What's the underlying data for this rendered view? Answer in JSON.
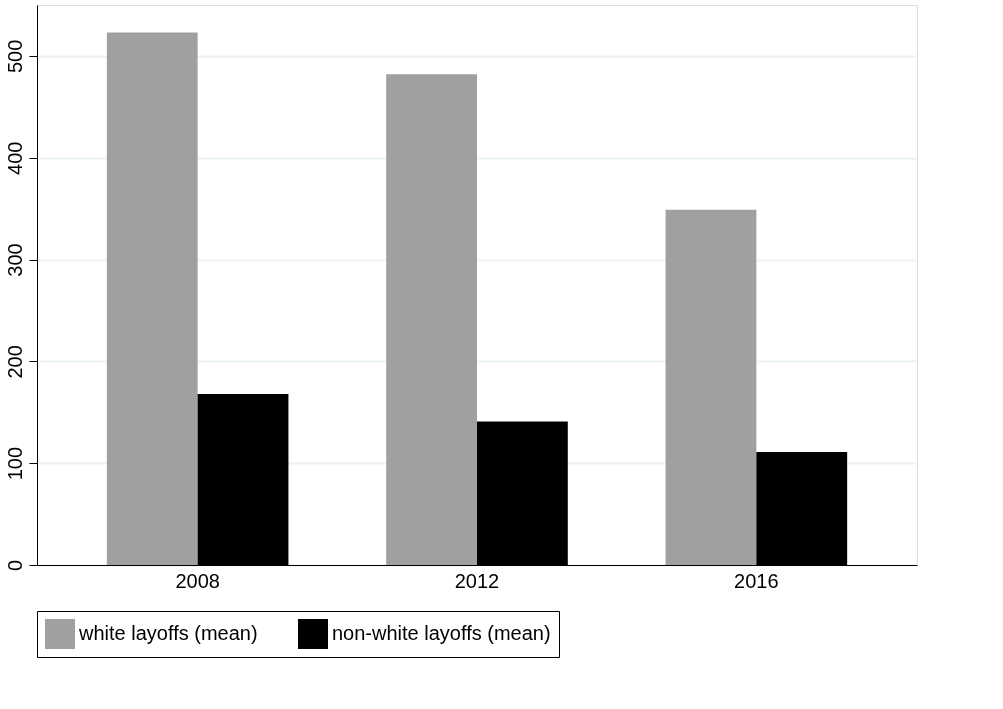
{
  "chart_data": {
    "type": "bar",
    "categories": [
      "2008",
      "2012",
      "2016"
    ],
    "series": [
      {
        "name": "white layoffs (mean)",
        "color": "#a0a0a0",
        "values": [
          523,
          482,
          349
        ]
      },
      {
        "name": "non-white layoffs (mean)",
        "color": "#000000",
        "values": [
          168,
          141,
          111
        ]
      }
    ],
    "ylim": [
      0,
      550
    ],
    "yticks": [
      0,
      100,
      200,
      300,
      400,
      500
    ],
    "grid": "y",
    "legend": "bottom"
  }
}
